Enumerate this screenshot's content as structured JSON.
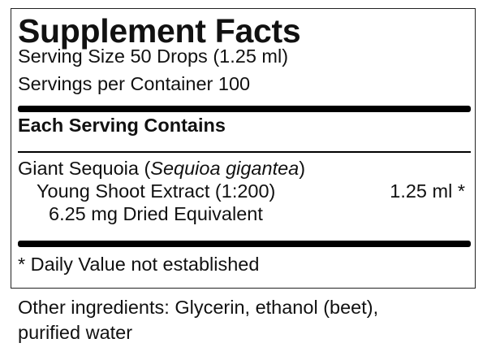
{
  "label": {
    "title": "Supplement Facts",
    "serving_size": "Serving Size 50 Drops (1.25 ml)",
    "servings_per_container": "Servings per Container 100",
    "section_heading": "Each Serving Contains",
    "ingredient": {
      "name": "Giant Sequoia (",
      "latin_name": "Sequioa gigantea",
      "name_close": ")",
      "extract": "Young Shoot Extract (1:200)",
      "amount": "1.25 ml *",
      "dried_equivalent": "6.25 mg Dried Equivalent"
    },
    "footnote": "* Daily Value not established"
  },
  "other_ingredients": {
    "line1": "Other ingredients: Glycerin, ethanol (beet),",
    "line2": "purified water"
  }
}
